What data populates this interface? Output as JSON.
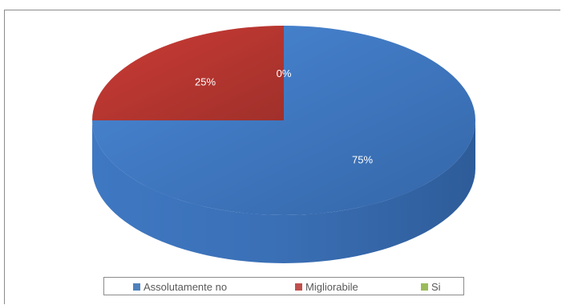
{
  "chart_data": {
    "type": "pie",
    "style": "3d",
    "categories": [
      "Assolutamente no",
      "Migliorabile",
      "Si"
    ],
    "values": [
      75,
      25,
      0
    ],
    "data_labels": [
      "75%",
      "25%",
      "0%"
    ],
    "colors": [
      "#4f81bd",
      "#c0504d",
      "#9bbb59"
    ],
    "title": "",
    "legend_position": "bottom"
  }
}
